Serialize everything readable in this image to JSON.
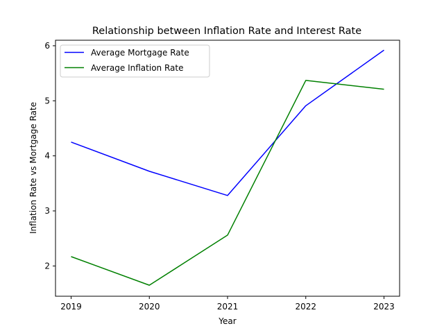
{
  "chart_data": {
    "type": "line",
    "title": "Relationship between Inflation Rate and Interest Rate",
    "xlabel": "Year",
    "ylabel": "Inflation Rate vs Mortgage Rate",
    "x": [
      "2019",
      "2020",
      "2021",
      "2022",
      "2023"
    ],
    "yticks": [
      2,
      3,
      4,
      5,
      6
    ],
    "ylim": [
      1.45,
      6.1
    ],
    "grid": false,
    "legend_position": "upper-left",
    "series": [
      {
        "name": "Average Mortgage Rate",
        "color": "#0000ff",
        "values": [
          4.25,
          3.72,
          3.28,
          4.91,
          5.92
        ]
      },
      {
        "name": "Average Inflation Rate",
        "color": "#008000",
        "values": [
          2.17,
          1.65,
          2.56,
          5.37,
          5.21
        ]
      }
    ]
  }
}
